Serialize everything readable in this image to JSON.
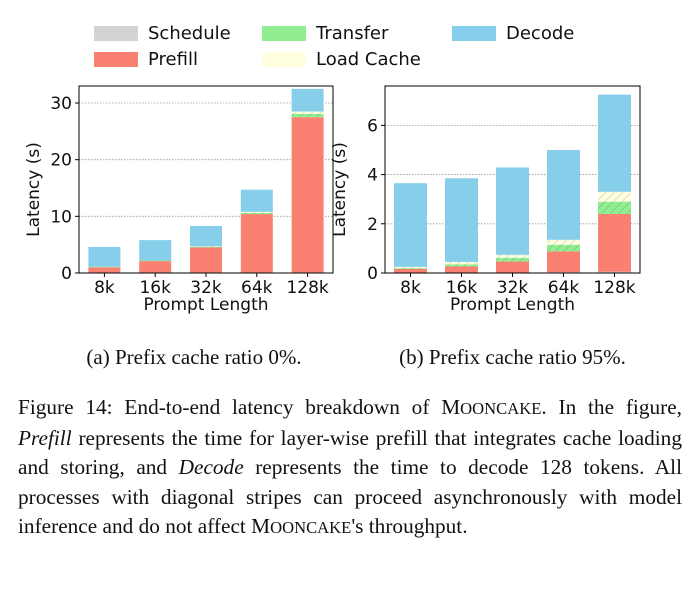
{
  "legend": [
    {
      "name": "Schedule",
      "color": "#d3d3d3"
    },
    {
      "name": "Prefill",
      "color": "#fa8072"
    },
    {
      "name": "Transfer",
      "color": "#90ee90"
    },
    {
      "name": "Load Cache",
      "color": "#ffffe0"
    },
    {
      "name": "Decode",
      "color": "#87ceeb"
    }
  ],
  "chart_data": [
    {
      "type": "bar",
      "stacked": true,
      "title": "",
      "xlabel": "Prompt Length",
      "ylabel": "Latency (s)",
      "ylim": [
        0,
        33
      ],
      "yticks": [
        0,
        10,
        20,
        30
      ],
      "categories": [
        "8k",
        "16k",
        "32k",
        "64k",
        "128k"
      ],
      "series": [
        {
          "name": "Schedule",
          "values": [
            0.1,
            0.1,
            0.1,
            0.1,
            0.1
          ]
        },
        {
          "name": "Prefill",
          "values": [
            0.9,
            2.0,
            4.4,
            10.3,
            27.4
          ]
        },
        {
          "name": "Transfer",
          "values": [
            0.1,
            0.1,
            0.1,
            0.2,
            0.6
          ]
        },
        {
          "name": "Load Cache",
          "values": [
            0.0,
            0.0,
            0.1,
            0.2,
            0.4
          ]
        },
        {
          "name": "Decode",
          "values": [
            3.5,
            3.6,
            3.6,
            3.9,
            4.0
          ]
        }
      ],
      "sublabel": "(a) Prefix cache ratio 0%."
    },
    {
      "type": "bar",
      "stacked": true,
      "title": "",
      "xlabel": "Prompt Length",
      "ylabel": "Latency (s)",
      "ylim": [
        0,
        7.6
      ],
      "yticks": [
        0,
        2,
        4,
        6
      ],
      "categories": [
        "8k",
        "16k",
        "32k",
        "64k",
        "128k"
      ],
      "series": [
        {
          "name": "Schedule",
          "values": [
            0.02,
            0.02,
            0.02,
            0.03,
            0.05
          ]
        },
        {
          "name": "Prefill",
          "values": [
            0.15,
            0.25,
            0.45,
            0.85,
            2.35
          ]
        },
        {
          "name": "Transfer",
          "values": [
            0.03,
            0.08,
            0.15,
            0.27,
            0.5
          ]
        },
        {
          "name": "Load Cache",
          "values": [
            0.05,
            0.1,
            0.12,
            0.2,
            0.4
          ]
        },
        {
          "name": "Decode",
          "values": [
            3.4,
            3.4,
            3.55,
            3.65,
            3.95
          ]
        }
      ],
      "sublabel": "(b) Prefix cache ratio 95%."
    }
  ],
  "caption": {
    "label": "Figure 14:",
    "text1": "End-to-end latency breakdown of",
    "system_first": "M",
    "system_rest": "OONCAKE",
    "text2": ". In the figure,",
    "term1": "Prefill",
    "text3": "represents the time for layer-wise prefill that integrates cache loading and storing, and",
    "term2": "Decode",
    "text4": "represents the time to decode 128 tokens. All processes with diagonal stripes can proceed asynchronously with model inference and do not affect",
    "system_first_2": "M",
    "system_rest_2": "OONCAKE",
    "text5": "'s throughput."
  }
}
